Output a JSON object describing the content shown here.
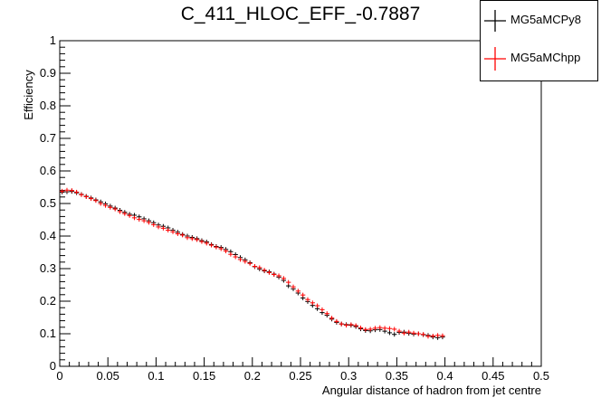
{
  "chart_data": {
    "type": "scatter",
    "title": "C_411_HLOC_EFF_-0.7887",
    "xlabel": "Angular distance of hadron from jet centre",
    "ylabel": "Efficiency",
    "xlim": [
      0,
      0.5
    ],
    "ylim": [
      0,
      1
    ],
    "xticks": [
      "0",
      "0.05",
      "0.1",
      "0.15",
      "0.2",
      "0.25",
      "0.3",
      "0.35",
      "0.4",
      "0.45",
      "0.5"
    ],
    "yticks": [
      "0",
      "0.1",
      "0.2",
      "0.3",
      "0.4",
      "0.5",
      "0.6",
      "0.7",
      "0.8",
      "0.9",
      "1"
    ],
    "grid": false,
    "legend_position": "top-right",
    "x": [
      0.0025,
      0.0075,
      0.0125,
      0.0175,
      0.0225,
      0.0275,
      0.0325,
      0.0375,
      0.0425,
      0.0475,
      0.0525,
      0.0575,
      0.0625,
      0.0675,
      0.0725,
      0.0775,
      0.0825,
      0.0875,
      0.0925,
      0.0975,
      0.1025,
      0.1075,
      0.1125,
      0.1175,
      0.1225,
      0.1275,
      0.1325,
      0.1375,
      0.1425,
      0.1475,
      0.1525,
      0.1575,
      0.1625,
      0.1675,
      0.1725,
      0.1775,
      0.1825,
      0.1875,
      0.1925,
      0.1975,
      0.2025,
      0.2075,
      0.2125,
      0.2175,
      0.2225,
      0.2275,
      0.2325,
      0.2375,
      0.2425,
      0.2475,
      0.2525,
      0.2575,
      0.2625,
      0.2675,
      0.2725,
      0.2775,
      0.2825,
      0.2875,
      0.2925,
      0.2975,
      0.3025,
      0.3075,
      0.3125,
      0.3175,
      0.3225,
      0.3275,
      0.3325,
      0.3375,
      0.3425,
      0.3475,
      0.3525,
      0.3575,
      0.3625,
      0.3675,
      0.3725,
      0.3775,
      0.3825,
      0.3875,
      0.3925,
      0.3975
    ],
    "series": [
      {
        "name": "MG5aMCPy8",
        "color": "#000000",
        "values": [
          0.535,
          0.536,
          0.537,
          0.533,
          0.528,
          0.522,
          0.517,
          0.511,
          0.505,
          0.499,
          0.492,
          0.486,
          0.479,
          0.473,
          0.467,
          0.464,
          0.459,
          0.453,
          0.447,
          0.441,
          0.434,
          0.43,
          0.425,
          0.418,
          0.412,
          0.405,
          0.4,
          0.396,
          0.392,
          0.386,
          0.382,
          0.374,
          0.368,
          0.365,
          0.359,
          0.352,
          0.343,
          0.334,
          0.327,
          0.318,
          0.306,
          0.299,
          0.293,
          0.29,
          0.283,
          0.274,
          0.264,
          0.247,
          0.238,
          0.225,
          0.21,
          0.199,
          0.187,
          0.177,
          0.165,
          0.157,
          0.145,
          0.135,
          0.13,
          0.128,
          0.126,
          0.122,
          0.115,
          0.11,
          0.109,
          0.112,
          0.113,
          0.108,
          0.103,
          0.098,
          0.104,
          0.105,
          0.101,
          0.099,
          0.1,
          0.097,
          0.095,
          0.09,
          0.088,
          0.09
        ]
      },
      {
        "name": "MG5aMChpp",
        "color": "#ff0000",
        "values": [
          0.538,
          0.541,
          0.54,
          0.535,
          0.527,
          0.521,
          0.515,
          0.509,
          0.5,
          0.494,
          0.488,
          0.483,
          0.475,
          0.469,
          0.463,
          0.456,
          0.451,
          0.447,
          0.442,
          0.435,
          0.428,
          0.424,
          0.418,
          0.413,
          0.407,
          0.403,
          0.395,
          0.392,
          0.389,
          0.383,
          0.378,
          0.372,
          0.366,
          0.361,
          0.354,
          0.344,
          0.336,
          0.328,
          0.322,
          0.316,
          0.307,
          0.303,
          0.295,
          0.288,
          0.282,
          0.278,
          0.27,
          0.258,
          0.244,
          0.231,
          0.219,
          0.205,
          0.195,
          0.186,
          0.174,
          0.162,
          0.148,
          0.138,
          0.13,
          0.126,
          0.128,
          0.125,
          0.118,
          0.113,
          0.114,
          0.117,
          0.119,
          0.117,
          0.116,
          0.114,
          0.108,
          0.102,
          0.105,
          0.102,
          0.1,
          0.098,
          0.092,
          0.093,
          0.095,
          0.094
        ]
      }
    ]
  }
}
